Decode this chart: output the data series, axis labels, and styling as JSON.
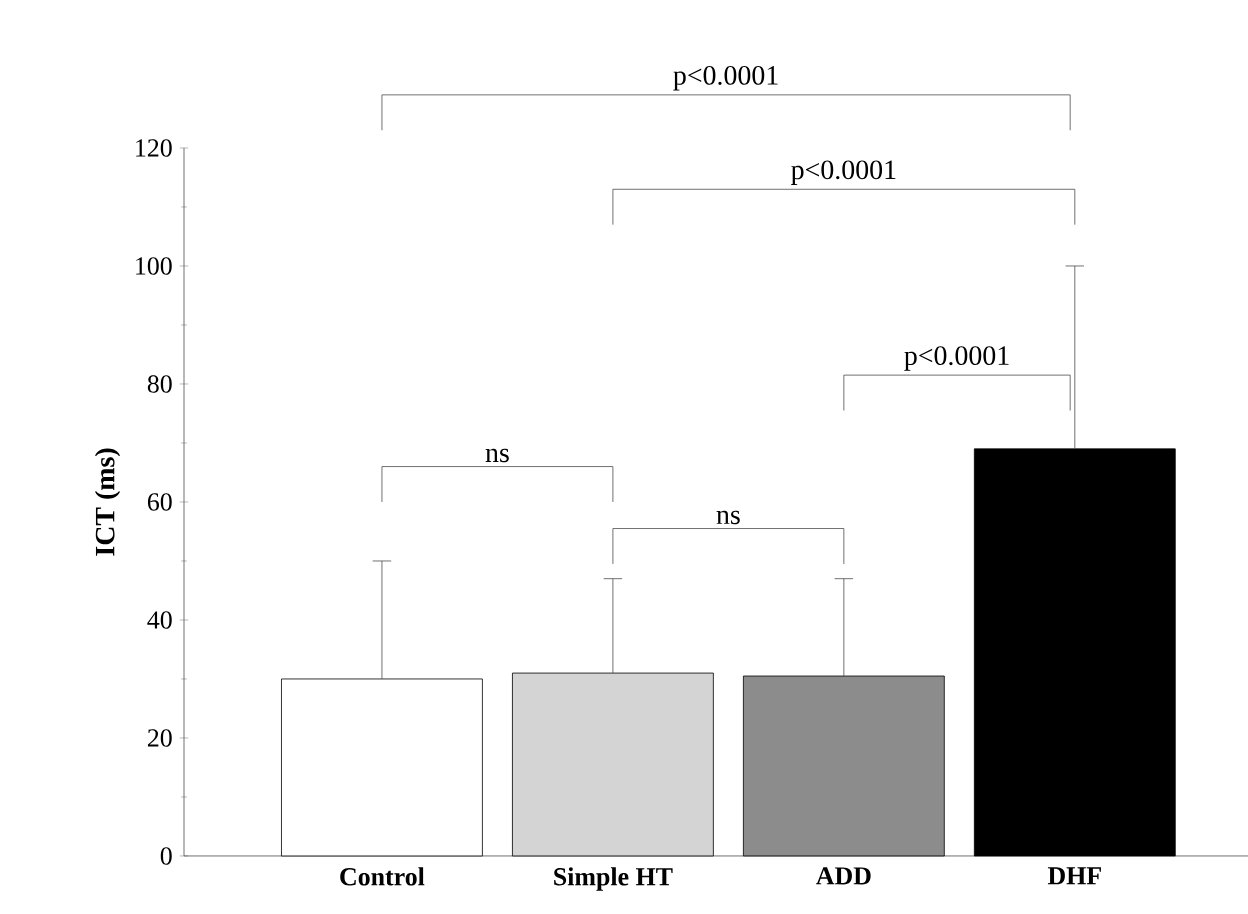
{
  "chart_data": {
    "type": "bar",
    "ylabel": "ICT (ms)",
    "categories": [
      "Control",
      "Simple HT",
      "ADD",
      "DHF"
    ],
    "values": [
      30,
      31,
      30.5,
      69
    ],
    "colors": [
      "#ffffff",
      "#d4d4d4",
      "#8c8c8c",
      "#000000"
    ],
    "errors": [
      [
        30,
        50
      ],
      [
        31,
        47
      ],
      [
        30.5,
        47
      ],
      [
        69,
        100
      ]
    ],
    "ylim": [
      0,
      120
    ],
    "yticks": [
      0,
      20,
      40,
      60,
      80,
      100,
      120
    ],
    "annotations": [
      "ns",
      "ns",
      "p<0.0001",
      "p<0.0001",
      "p<0.0001"
    ]
  }
}
